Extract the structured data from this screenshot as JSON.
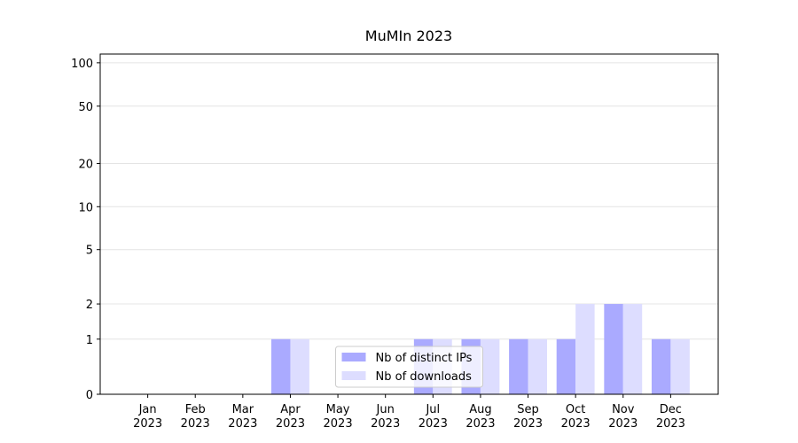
{
  "chart_data": {
    "type": "bar",
    "title": "MuMIn 2023",
    "categories": [
      "Jan\n2023",
      "Feb\n2023",
      "Mar\n2023",
      "Apr\n2023",
      "May\n2023",
      "Jun\n2023",
      "Jul\n2023",
      "Aug\n2023",
      "Sep\n2023",
      "Oct\n2023",
      "Nov\n2023",
      "Dec\n2023"
    ],
    "series": [
      {
        "name": "Nb of distinct IPs",
        "color": "#aaaaff",
        "values": [
          0,
          0,
          0,
          1,
          0,
          0,
          1,
          1,
          1,
          1,
          2,
          1
        ]
      },
      {
        "name": "Nb of downloads",
        "color": "#ddddff",
        "values": [
          0,
          0,
          0,
          1,
          0,
          0,
          1,
          1,
          1,
          2,
          2,
          1
        ]
      }
    ],
    "yscale": "asinh",
    "ylim": [
      0,
      115
    ],
    "yticks": [
      0,
      1,
      2,
      5,
      10,
      20,
      50,
      100
    ],
    "grid": true,
    "legend": "lower center"
  }
}
